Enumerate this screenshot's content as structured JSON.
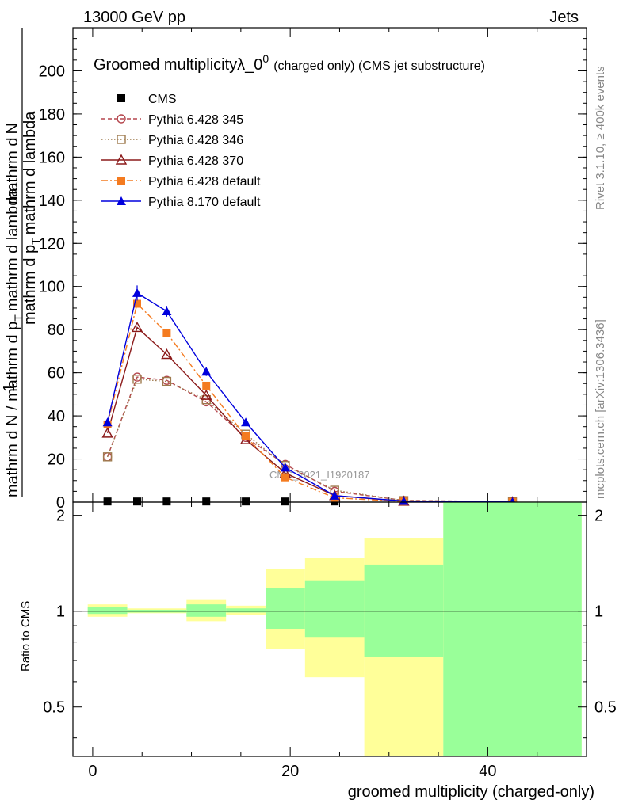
{
  "header": {
    "left": "13000 GeV pp",
    "right": "Jets"
  },
  "side_labels": {
    "rivet": "Rivet 3.1.10, ≥ 400k events",
    "mcplots": "mcplots.cern.ch [arXiv:1306.3436]"
  },
  "watermark": "CMS_2021_I1920187",
  "chart_data": {
    "type": "line",
    "title": "Groomed multiplicityλ_0",
    "title_sup": "0",
    "title_suffix": "(charged only) (CMS jet substructure)",
    "ylabel": "mathrm d N / mathrm d p_T mathrm d lambda",
    "ylabel_parts": {
      "numerator": "mathrm d",
      "numerator_var": "N",
      "denom_a": "mathrm d p",
      "denom_sub": "T",
      "denom_b": "mathrm d lambda",
      "one": "1",
      "ratio_denom": "mathrm d N / mathrm d p",
      "ratio_sub": "T",
      "ratio_tail": "mathrm d lambda"
    },
    "xlabel": "groomed multiplicity (charged-only)",
    "xlim": [
      -2,
      50
    ],
    "ylim": [
      0,
      220
    ],
    "yticks": [
      0,
      20,
      40,
      60,
      80,
      100,
      120,
      140,
      160,
      180,
      200
    ],
    "xticks": [
      0,
      20,
      40
    ],
    "x": [
      1.5,
      4.5,
      7.5,
      11.5,
      15.5,
      19.5,
      24.5,
      31.5,
      42.5
    ],
    "series": [
      {
        "name": "CMS",
        "color": "#000000",
        "marker": "square-filled",
        "line": "none",
        "values": [
          0.3,
          0.3,
          0.3,
          0.3,
          0.3,
          0.3,
          0.3,
          0.3,
          0.3
        ]
      },
      {
        "name": "Pythia 6.428 345",
        "color": "#b5474e",
        "marker": "circle-open",
        "line": "dashed",
        "values": [
          21,
          58,
          56.5,
          46.5,
          30,
          17.5,
          5,
          0.8,
          0.2
        ]
      },
      {
        "name": "Pythia 6.428 346",
        "color": "#9e7a4e",
        "marker": "square-open",
        "line": "dotted",
        "values": [
          21,
          57,
          56,
          47.5,
          31.5,
          17,
          5.5,
          0.7,
          0.2
        ]
      },
      {
        "name": "Pythia 6.428 370",
        "color": "#8b1a1a",
        "marker": "triangle-open",
        "line": "solid",
        "values": [
          32,
          81,
          68.5,
          49.5,
          29,
          13.5,
          3,
          0.4,
          0.1
        ]
      },
      {
        "name": "Pythia 6.428 default",
        "color": "#f47b20",
        "marker": "square-filled",
        "line": "dashdot",
        "values": [
          36,
          92,
          78.5,
          54,
          30.5,
          11.5,
          2,
          0.3,
          0.1
        ]
      },
      {
        "name": "Pythia 8.170 default",
        "color": "#0000dd",
        "marker": "triangle-filled",
        "line": "solid",
        "values": [
          37,
          97,
          88.5,
          60.5,
          37,
          16,
          3,
          0.5,
          0.1
        ],
        "errors": [
          1.5,
          3.5,
          2.5,
          2,
          1.5,
          1,
          0.5,
          0.2,
          0.1
        ]
      }
    ],
    "ratio": {
      "ylabel": "Ratio to CMS",
      "ylim": [
        0.35,
        2.2
      ],
      "yticks": [
        0.5,
        1,
        2
      ],
      "ytick_labels": [
        "0.5",
        "1",
        "2"
      ],
      "green_color": "#99ff99",
      "yellow_color": "#ffff99",
      "bins": [
        {
          "lo": -0.5,
          "hi": 3.5,
          "green": [
            0.98,
            1.03
          ],
          "yellow": [
            0.96,
            1.05
          ]
        },
        {
          "lo": 3.5,
          "hi": 9.5,
          "green": [
            0.99,
            1.01
          ],
          "yellow": [
            0.985,
            1.02
          ]
        },
        {
          "lo": 9.5,
          "hi": 13.5,
          "green": [
            0.96,
            1.05
          ],
          "yellow": [
            0.93,
            1.09
          ]
        },
        {
          "lo": 13.5,
          "hi": 17.5,
          "green": [
            0.99,
            1.02
          ],
          "yellow": [
            0.97,
            1.04
          ]
        },
        {
          "lo": 17.5,
          "hi": 21.5,
          "green": [
            0.88,
            1.18
          ],
          "yellow": [
            0.76,
            1.36
          ]
        },
        {
          "lo": 21.5,
          "hi": 27.5,
          "green": [
            0.83,
            1.25
          ],
          "yellow": [
            0.62,
            1.47
          ]
        },
        {
          "lo": 27.5,
          "hi": 35.5,
          "green": [
            0.72,
            1.4
          ],
          "yellow": [
            0.35,
            1.7
          ]
        },
        {
          "lo": 35.5,
          "hi": 49.5,
          "green": [
            0.35,
            2.2
          ],
          "yellow": [
            0.35,
            2.2
          ]
        }
      ]
    }
  }
}
